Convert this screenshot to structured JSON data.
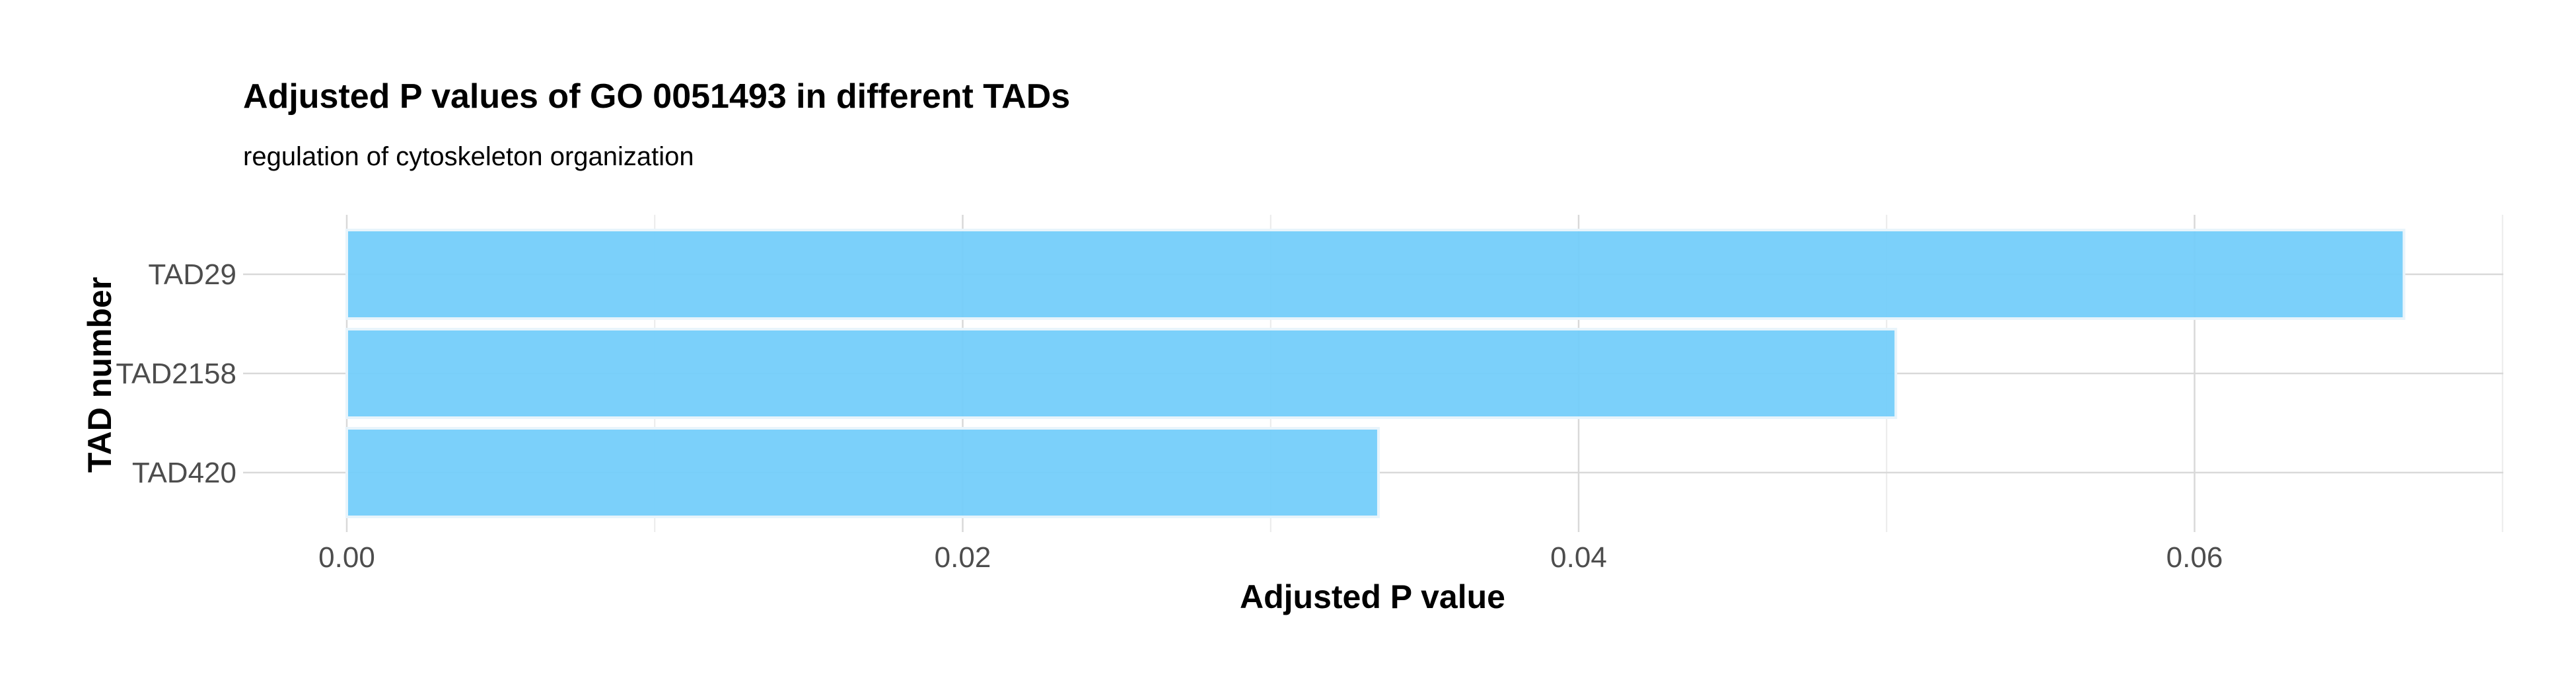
{
  "chart_data": {
    "type": "bar",
    "orientation": "horizontal",
    "title": "Adjusted P values of GO 0051493 in different TADs",
    "subtitle": "regulation of cytoskeleton organization",
    "xlabel": "Adjusted P value",
    "ylabel": "TAD number",
    "categories": [
      "TAD29",
      "TAD2158",
      "TAD420"
    ],
    "values": [
      0.0668,
      0.0503,
      0.0335
    ],
    "xlim": [
      0.0,
      0.07
    ],
    "x_ticks": [
      0.0,
      0.02,
      0.04,
      0.06
    ],
    "x_tick_labels": [
      "0.00",
      "0.02",
      "0.04",
      "0.06"
    ],
    "bar_color": "#74cdfa",
    "grid": true,
    "legend": "none"
  }
}
